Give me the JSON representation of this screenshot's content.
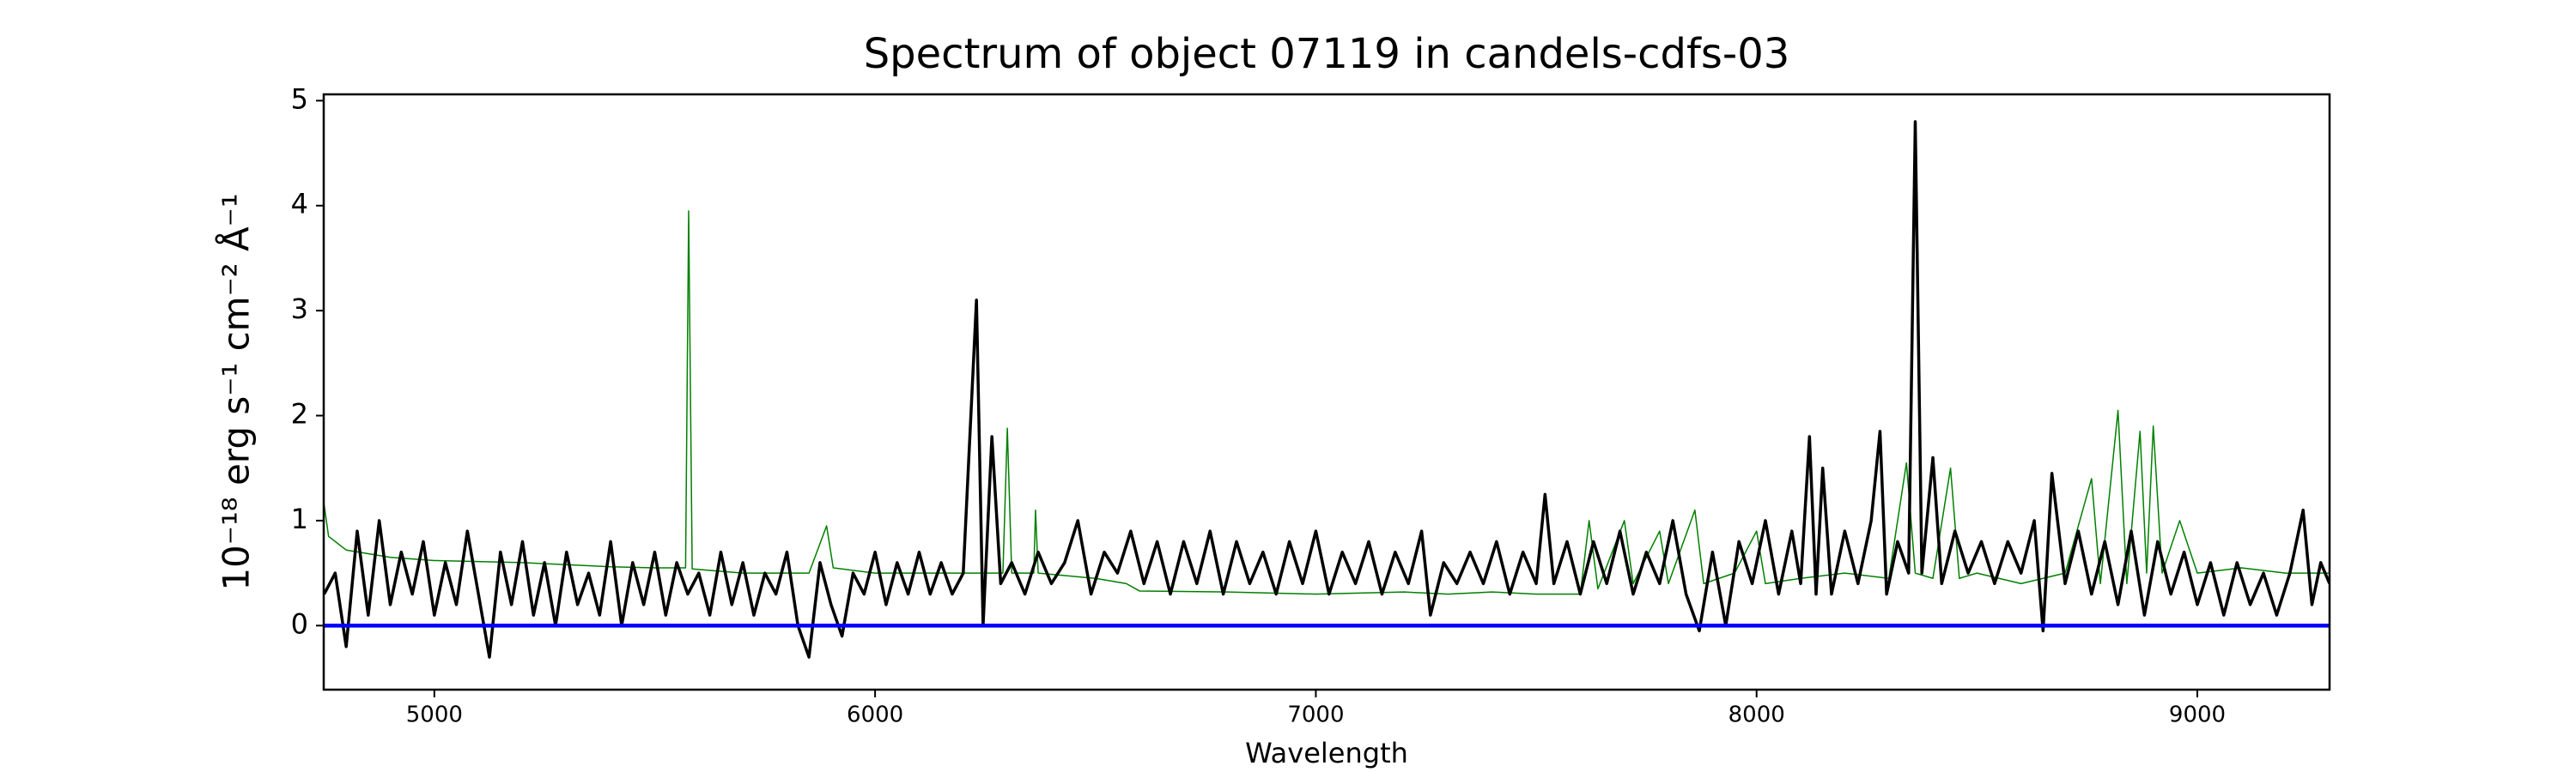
{
  "chart_data": {
    "type": "line",
    "title": "Spectrum of object 07119 in candels-cdfs-03",
    "x_label": "Wavelength",
    "y_label": "10⁻¹⁸ erg s⁻¹ cm⁻² Å⁻¹",
    "xlim": [
      4749,
      9300
    ],
    "ylim": [
      -0.61,
      5.06
    ],
    "xticks": [
      5000,
      6000,
      7000,
      8000,
      9000
    ],
    "yticks": [
      0,
      1,
      2,
      3,
      4,
      5
    ],
    "series": [
      {
        "color": "#008000",
        "x": [
          4750,
          4760,
          4800,
          4900,
          5000,
          5200,
          5400,
          5500,
          5570,
          5577,
          5585,
          5700,
          5850,
          5890,
          5905,
          6000,
          6290,
          6300,
          6310,
          6360,
          6364,
          6370,
          6500,
          6570,
          6600,
          6800,
          7000,
          7200,
          7300,
          7400,
          7500,
          7600,
          7620,
          7640,
          7700,
          7720,
          7780,
          7800,
          7860,
          7880,
          7950,
          8000,
          8020,
          8100,
          8200,
          8300,
          8340,
          8360,
          8400,
          8440,
          8460,
          8500,
          8600,
          8700,
          8760,
          8780,
          8820,
          8840,
          8870,
          8885,
          8900,
          8920,
          8960,
          9000,
          9100,
          9200,
          9300
        ],
        "values": [
          1.15,
          0.85,
          0.72,
          0.65,
          0.62,
          0.6,
          0.56,
          0.55,
          0.55,
          3.95,
          0.54,
          0.5,
          0.5,
          0.95,
          0.55,
          0.5,
          0.5,
          1.88,
          0.5,
          0.5,
          1.1,
          0.5,
          0.45,
          0.4,
          0.33,
          0.32,
          0.3,
          0.32,
          0.3,
          0.32,
          0.3,
          0.3,
          1.0,
          0.35,
          1.0,
          0.4,
          0.9,
          0.4,
          1.1,
          0.4,
          0.5,
          0.9,
          0.4,
          0.45,
          0.5,
          0.45,
          1.55,
          0.5,
          0.45,
          1.5,
          0.45,
          0.5,
          0.4,
          0.5,
          1.4,
          0.4,
          2.05,
          0.4,
          1.85,
          0.5,
          1.9,
          0.5,
          1.0,
          0.5,
          0.55,
          0.5,
          0.5
        ]
      },
      {
        "color": "#000000",
        "x": [
          4750,
          4775,
          4800,
          4825,
          4850,
          4875,
          4900,
          4925,
          4950,
          4975,
          5000,
          5025,
          5050,
          5075,
          5100,
          5125,
          5150,
          5175,
          5200,
          5225,
          5250,
          5275,
          5300,
          5325,
          5350,
          5375,
          5400,
          5425,
          5450,
          5475,
          5500,
          5525,
          5550,
          5575,
          5600,
          5625,
          5650,
          5675,
          5700,
          5725,
          5750,
          5775,
          5800,
          5825,
          5850,
          5875,
          5900,
          5925,
          5950,
          5975,
          6000,
          6025,
          6050,
          6075,
          6100,
          6125,
          6150,
          6175,
          6200,
          6230,
          6245,
          6265,
          6285,
          6310,
          6340,
          6370,
          6400,
          6430,
          6460,
          6490,
          6520,
          6550,
          6580,
          6610,
          6640,
          6670,
          6700,
          6730,
          6760,
          6790,
          6820,
          6850,
          6880,
          6910,
          6940,
          6970,
          7000,
          7030,
          7060,
          7090,
          7120,
          7150,
          7180,
          7210,
          7240,
          7260,
          7290,
          7320,
          7350,
          7380,
          7410,
          7440,
          7470,
          7500,
          7520,
          7540,
          7570,
          7600,
          7630,
          7660,
          7690,
          7720,
          7750,
          7780,
          7810,
          7840,
          7870,
          7900,
          7930,
          7960,
          7990,
          8020,
          8050,
          8080,
          8100,
          8120,
          8135,
          8150,
          8170,
          8200,
          8230,
          8260,
          8280,
          8295,
          8320,
          8345,
          8360,
          8375,
          8400,
          8420,
          8450,
          8480,
          8510,
          8540,
          8570,
          8600,
          8630,
          8650,
          8670,
          8700,
          8730,
          8760,
          8790,
          8820,
          8850,
          8880,
          8910,
          8940,
          8970,
          9000,
          9030,
          9060,
          9090,
          9120,
          9150,
          9180,
          9210,
          9240,
          9260,
          9280,
          9300
        ],
        "values": [
          0.3,
          0.5,
          -0.2,
          0.9,
          0.1,
          1.0,
          0.2,
          0.7,
          0.3,
          0.8,
          0.1,
          0.6,
          0.2,
          0.9,
          0.3,
          -0.3,
          0.7,
          0.2,
          0.8,
          0.1,
          0.6,
          0.0,
          0.7,
          0.2,
          0.5,
          0.1,
          0.8,
          0.0,
          0.6,
          0.2,
          0.7,
          0.1,
          0.6,
          0.3,
          0.5,
          0.1,
          0.7,
          0.2,
          0.6,
          0.1,
          0.5,
          0.3,
          0.7,
          0.0,
          -0.3,
          0.6,
          0.2,
          -0.1,
          0.5,
          0.3,
          0.7,
          0.2,
          0.6,
          0.3,
          0.7,
          0.3,
          0.6,
          0.3,
          0.5,
          3.1,
          0.0,
          1.8,
          0.4,
          0.6,
          0.3,
          0.7,
          0.4,
          0.6,
          1.0,
          0.3,
          0.7,
          0.5,
          0.9,
          0.4,
          0.8,
          0.3,
          0.8,
          0.4,
          0.9,
          0.3,
          0.8,
          0.4,
          0.7,
          0.3,
          0.8,
          0.4,
          0.9,
          0.3,
          0.7,
          0.4,
          0.8,
          0.3,
          0.7,
          0.4,
          0.9,
          0.1,
          0.6,
          0.4,
          0.7,
          0.4,
          0.8,
          0.3,
          0.7,
          0.4,
          1.25,
          0.4,
          0.8,
          0.3,
          0.8,
          0.4,
          0.9,
          0.3,
          0.7,
          0.4,
          1.0,
          0.3,
          -0.05,
          0.7,
          0.0,
          0.8,
          0.4,
          1.0,
          0.3,
          0.9,
          0.4,
          1.8,
          0.3,
          1.5,
          0.3,
          0.9,
          0.4,
          1.0,
          1.85,
          0.3,
          0.8,
          0.5,
          4.8,
          0.5,
          1.6,
          0.4,
          0.9,
          0.5,
          0.8,
          0.4,
          0.8,
          0.5,
          1.0,
          -0.05,
          1.45,
          0.4,
          0.9,
          0.3,
          0.8,
          0.2,
          0.9,
          0.1,
          0.8,
          0.3,
          0.7,
          0.2,
          0.6,
          0.1,
          0.6,
          0.2,
          0.5,
          0.1,
          0.5,
          1.1,
          0.2,
          0.6,
          0.4
        ]
      },
      {
        "color": "#0000ff",
        "x": [
          4750,
          9300
        ],
        "values": [
          0,
          0
        ]
      }
    ]
  }
}
